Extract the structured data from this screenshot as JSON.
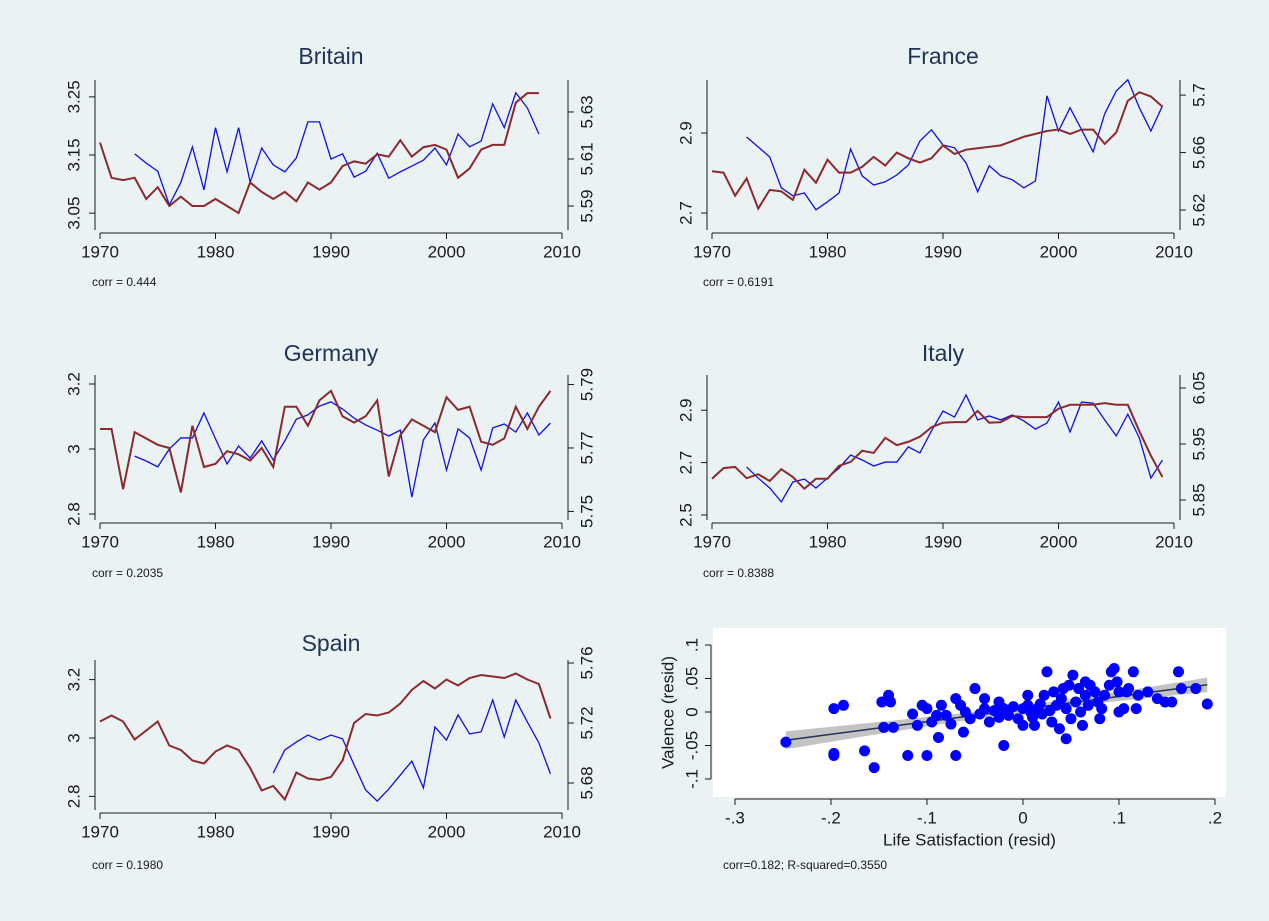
{
  "chart_data": [
    {
      "type": "line",
      "title": "Britain",
      "annotation": "corr = 0.444",
      "x": [
        1970,
        1971,
        1972,
        1973,
        1974,
        1975,
        1976,
        1977,
        1978,
        1979,
        1980,
        1981,
        1982,
        1983,
        1984,
        1985,
        1986,
        1987,
        1988,
        1989,
        1990,
        1991,
        1992,
        1993,
        1994,
        1995,
        1996,
        1997,
        1998,
        1999,
        2000,
        2001,
        2002,
        2003,
        2004,
        2005,
        2006,
        2007,
        2008
      ],
      "xlim": [
        1970,
        2010
      ],
      "xticks": [
        1970,
        1980,
        1990,
        2000,
        2010
      ],
      "ylim": [
        3.021,
        3.279
      ],
      "yticks": [
        3.05,
        3.15,
        3.25
      ],
      "y2lim": [
        5.5798,
        5.6436
      ],
      "y2ticks": [
        5.59,
        5.61,
        5.63
      ],
      "series": [
        {
          "color": "#1010e0",
          "axis": "y",
          "values": [
            null,
            null,
            null,
            3.152,
            3.136,
            3.122,
            3.064,
            3.103,
            3.164,
            3.09,
            3.197,
            3.121,
            3.197,
            3.103,
            3.162,
            3.133,
            3.121,
            3.145,
            3.207,
            3.207,
            3.143,
            3.152,
            3.112,
            3.122,
            3.153,
            3.11,
            3.121,
            3.131,
            3.141,
            3.162,
            3.133,
            3.186,
            3.164,
            3.174,
            3.238,
            3.197,
            3.257,
            3.231,
            3.186
          ]
        },
        {
          "color": "#8b2a2e",
          "axis": "y2",
          "values": [
            5.617,
            5.602,
            5.601,
            5.602,
            5.593,
            5.598,
            5.59,
            5.594,
            5.59,
            5.59,
            5.593,
            5.59,
            5.587,
            5.6,
            5.596,
            5.593,
            5.596,
            5.592,
            5.6,
            5.597,
            5.6,
            5.607,
            5.609,
            5.608,
            5.612,
            5.611,
            5.618,
            5.611,
            5.615,
            5.616,
            5.614,
            5.602,
            5.606,
            5.614,
            5.616,
            5.616,
            5.634,
            5.638,
            5.638
          ]
        }
      ]
    },
    {
      "type": "line",
      "title": "France",
      "annotation": "corr = 0.6191",
      "x": [
        1970,
        1971,
        1972,
        1973,
        1974,
        1975,
        1976,
        1977,
        1978,
        1979,
        1980,
        1981,
        1982,
        1983,
        1984,
        1985,
        1986,
        1987,
        1988,
        1989,
        1990,
        1991,
        1992,
        1993,
        1994,
        1995,
        1996,
        1997,
        1998,
        1999,
        2000,
        2001,
        2002,
        2003,
        2004,
        2005,
        2006,
        2007,
        2008,
        2009
      ],
      "xlim": [
        1970,
        2010
      ],
      "xticks": [
        1970,
        1980,
        1990,
        2000,
        2010
      ],
      "ylim": [
        2.6575,
        3.0325
      ],
      "yticks": [
        2.7,
        2.9
      ],
      "y2lim": [
        5.6061,
        5.7105
      ],
      "y2ticks": [
        5.62,
        5.66,
        5.7
      ],
      "series": [
        {
          "color": "#1010e0",
          "axis": "y",
          "values": [
            null,
            null,
            null,
            2.89,
            2.865,
            2.84,
            2.763,
            2.743,
            2.75,
            2.708,
            2.728,
            2.75,
            2.86,
            2.793,
            2.77,
            2.778,
            2.795,
            2.82,
            2.88,
            2.908,
            2.87,
            2.863,
            2.825,
            2.753,
            2.818,
            2.793,
            2.783,
            2.763,
            2.78,
            2.993,
            2.905,
            2.963,
            2.908,
            2.853,
            2.948,
            3.005,
            3.033,
            2.963,
            2.905,
            2.968
          ]
        },
        {
          "color": "#8b2a2e",
          "axis": "y2",
          "values": [
            5.647,
            5.646,
            5.63,
            5.642,
            5.621,
            5.634,
            5.633,
            5.627,
            5.648,
            5.639,
            5.655,
            5.646,
            5.646,
            5.65,
            5.657,
            5.651,
            5.66,
            5.656,
            5.653,
            5.656,
            5.665,
            5.659,
            5.662,
            5.663,
            5.664,
            5.665,
            5.668,
            5.671,
            5.673,
            5.675,
            5.676,
            5.673,
            5.676,
            5.676,
            5.666,
            5.674,
            5.696,
            5.702,
            5.699,
            5.692
          ]
        }
      ]
    },
    {
      "type": "line",
      "title": "Germany",
      "annotation": "corr = 0.2035",
      "x": [
        1970,
        1971,
        1972,
        1973,
        1974,
        1975,
        1976,
        1977,
        1978,
        1979,
        1980,
        1981,
        1982,
        1983,
        1984,
        1985,
        1986,
        1987,
        1988,
        1989,
        1990,
        1991,
        1992,
        1993,
        1994,
        1995,
        1996,
        1997,
        1998,
        1999,
        2000,
        2001,
        2002,
        2003,
        2004,
        2005,
        2006,
        2007,
        2008,
        2009
      ],
      "xlim": [
        1970,
        2010
      ],
      "xticks": [
        1970,
        1980,
        1990,
        2000,
        2010
      ],
      "ylim": [
        2.7815,
        3.2277
      ],
      "yticks": [
        2.8,
        3,
        3.2
      ],
      "y2lim": [
        5.7473,
        5.793
      ],
      "y2ticks": [
        5.75,
        5.77,
        5.79
      ],
      "series": [
        {
          "color": "#1010e0",
          "axis": "y",
          "values": [
            null,
            null,
            null,
            2.978,
            2.963,
            2.945,
            3.0,
            3.034,
            3.034,
            3.111,
            3.031,
            2.954,
            3.009,
            2.972,
            3.025,
            2.966,
            3.025,
            3.092,
            3.105,
            3.132,
            3.145,
            3.123,
            3.095,
            3.074,
            3.058,
            3.04,
            3.058,
            2.852,
            3.028,
            3.08,
            2.935,
            3.062,
            3.034,
            2.935,
            3.065,
            3.077,
            3.052,
            3.111,
            3.043,
            3.08
          ]
        },
        {
          "color": "#8b2a2e",
          "axis": "y2",
          "values": [
            5.776,
            5.776,
            5.757,
            5.775,
            5.773,
            5.771,
            5.77,
            5.756,
            5.777,
            5.764,
            5.765,
            5.769,
            5.768,
            5.766,
            5.77,
            5.764,
            5.783,
            5.783,
            5.777,
            5.785,
            5.788,
            5.78,
            5.778,
            5.78,
            5.785,
            5.761,
            5.774,
            5.779,
            5.777,
            5.775,
            5.786,
            5.782,
            5.783,
            5.772,
            5.771,
            5.773,
            5.783,
            5.776,
            5.783,
            5.788
          ]
        }
      ]
    },
    {
      "type": "line",
      "title": "Italy",
      "annotation": "corr = 0.8388",
      "x": [
        1970,
        1971,
        1972,
        1973,
        1974,
        1975,
        1976,
        1977,
        1978,
        1979,
        1980,
        1981,
        1982,
        1983,
        1984,
        1985,
        1986,
        1987,
        1988,
        1989,
        1990,
        1991,
        1992,
        1993,
        1994,
        1995,
        1996,
        1997,
        1998,
        1999,
        2000,
        2001,
        2002,
        2003,
        2004,
        2005,
        2006,
        2007,
        2008,
        2009
      ],
      "xlim": [
        1970,
        2010
      ],
      "xticks": [
        1970,
        1980,
        1990,
        2000,
        2010
      ],
      "ylim": [
        2.4809,
        3.0344
      ],
      "yticks": [
        2.5,
        2.7,
        2.9
      ],
      "y2lim": [
        5.8143,
        6.0732
      ],
      "y2ticks": [
        5.85,
        5.95,
        6.05
      ],
      "series": [
        {
          "color": "#1010e0",
          "axis": "y",
          "values": [
            null,
            null,
            null,
            2.683,
            2.641,
            2.603,
            2.55,
            2.626,
            2.637,
            2.603,
            2.641,
            2.679,
            2.729,
            2.71,
            2.687,
            2.702,
            2.702,
            2.76,
            2.737,
            2.821,
            2.897,
            2.874,
            2.958,
            2.863,
            2.878,
            2.863,
            2.882,
            2.859,
            2.828,
            2.851,
            2.931,
            2.817,
            2.931,
            2.927,
            2.863,
            2.802,
            2.885,
            2.794,
            2.641,
            2.71
          ]
        },
        {
          "color": "#8b2a2e",
          "axis": "y2",
          "values": [
            5.888,
            5.907,
            5.909,
            5.889,
            5.896,
            5.884,
            5.905,
            5.891,
            5.87,
            5.888,
            5.888,
            5.911,
            5.918,
            5.938,
            5.934,
            5.961,
            5.948,
            5.954,
            5.963,
            5.98,
            5.988,
            5.989,
            5.989,
            6.009,
            5.988,
            5.989,
            6.0,
            5.998,
            5.998,
            5.998,
            6.013,
            6.02,
            6.02,
            6.02,
            6.023,
            6.02,
            6.02,
            5.973,
            5.929,
            5.891
          ]
        }
      ]
    },
    {
      "type": "line",
      "title": "Spain",
      "annotation": "corr = 0.1980",
      "x": [
        1970,
        1971,
        1972,
        1973,
        1974,
        1975,
        1976,
        1977,
        1978,
        1979,
        1980,
        1981,
        1982,
        1983,
        1984,
        1985,
        1986,
        1987,
        1988,
        1989,
        1990,
        1991,
        1992,
        1993,
        1994,
        1995,
        1996,
        1997,
        1998,
        1999,
        2000,
        2001,
        2002,
        2003,
        2004,
        2005,
        2006,
        2007,
        2008,
        2009
      ],
      "xlim": [
        1970,
        2010
      ],
      "xticks": [
        1970,
        1980,
        1990,
        2000,
        2010
      ],
      "ylim": [
        2.7534,
        3.2671
      ],
      "yticks": [
        2.8,
        3,
        3.2
      ],
      "y2lim": [
        5.662,
        5.762
      ],
      "y2ticks": [
        5.68,
        5.72,
        5.76
      ],
      "series": [
        {
          "color": "#1010e0",
          "axis": "y",
          "values": [
            null,
            null,
            null,
            null,
            null,
            null,
            null,
            null,
            null,
            null,
            null,
            null,
            null,
            null,
            null,
            2.88,
            2.959,
            2.986,
            3.01,
            2.993,
            3.01,
            2.997,
            2.908,
            2.822,
            2.784,
            2.825,
            2.873,
            2.921,
            2.829,
            3.038,
            2.993,
            3.079,
            3.014,
            3.021,
            3.13,
            3.003,
            3.13,
            3.055,
            2.983,
            2.877
          ]
        },
        {
          "color": "#8b2a2e",
          "axis": "y2",
          "values": [
            5.721,
            5.725,
            5.721,
            5.709,
            5.715,
            5.721,
            5.705,
            5.702,
            5.695,
            5.693,
            5.701,
            5.705,
            5.702,
            5.69,
            5.675,
            5.678,
            5.669,
            5.687,
            5.683,
            5.682,
            5.684,
            5.695,
            5.72,
            5.726,
            5.725,
            5.727,
            5.733,
            5.742,
            5.748,
            5.743,
            5.749,
            5.745,
            5.75,
            5.752,
            5.751,
            5.75,
            5.753,
            5.749,
            5.746,
            5.723
          ]
        }
      ]
    },
    {
      "type": "scatter",
      "annotation": "corr=0.182; R-squared=0.3550",
      "xlabel": "Life Satisfaction (resid)",
      "ylabel": "Valence (resid)",
      "color": "#0000ff",
      "xlim": [
        -0.3229,
        0.2115
      ],
      "xticks": [
        {
          "value": -0.3,
          "label": "-.3"
        },
        {
          "value": -0.2,
          "label": "-.2"
        },
        {
          "value": -0.1,
          "label": "-.1"
        },
        0,
        {
          "value": 0.1,
          "label": ".1"
        },
        {
          "value": 0.2,
          "label": ".2"
        }
      ],
      "ylim": [
        -0.1269,
        0.1254
      ],
      "yticks": [
        {
          "value": -0.1,
          "label": "-.1"
        },
        {
          "value": -0.05,
          "label": "-.05"
        },
        0,
        {
          "value": 0.05,
          "label": ".05"
        },
        {
          "value": 0.1,
          "label": ".1"
        }
      ],
      "x": [
        -0.247,
        -0.197,
        -0.187,
        -0.197,
        -0.197,
        -0.165,
        -0.155,
        -0.147,
        -0.14,
        -0.138,
        -0.145,
        -0.135,
        -0.12,
        -0.115,
        -0.105,
        -0.1,
        -0.1,
        -0.095,
        -0.09,
        -0.088,
        -0.085,
        -0.08,
        -0.075,
        -0.07,
        -0.07,
        -0.065,
        -0.06,
        -0.055,
        -0.05,
        -0.045,
        -0.04,
        -0.035,
        -0.03,
        -0.025,
        -0.02,
        -0.02,
        -0.015,
        -0.01,
        -0.005,
        0.0,
        0.0,
        0.005,
        0.008,
        0.01,
        0.012,
        0.015,
        0.018,
        0.02,
        0.022,
        0.025,
        0.028,
        0.03,
        0.032,
        0.035,
        0.038,
        0.04,
        0.042,
        0.045,
        0.048,
        0.05,
        0.052,
        0.055,
        0.058,
        0.06,
        0.062,
        0.065,
        0.068,
        0.07,
        0.075,
        0.078,
        0.08,
        0.082,
        0.085,
        0.09,
        0.092,
        0.095,
        0.098,
        0.1,
        0.105,
        0.108,
        0.11,
        0.115,
        0.118,
        0.12,
        0.13,
        0.14,
        0.148,
        0.155,
        0.162,
        0.165,
        0.18,
        0.192,
        -0.11,
        -0.062,
        -0.04,
        0.045,
        0.005,
        -0.025,
        0.065,
        0.1
      ],
      "values": [
        -0.045,
        0.005,
        0.01,
        -0.065,
        -0.062,
        -0.058,
        -0.083,
        0.015,
        0.025,
        0.015,
        -0.023,
        -0.023,
        -0.065,
        -0.003,
        0.01,
        -0.065,
        0.005,
        -0.015,
        -0.005,
        -0.038,
        0.01,
        -0.005,
        -0.018,
        0.02,
        -0.065,
        0.01,
        0.0,
        -0.01,
        0.035,
        -0.003,
        0.005,
        -0.015,
        0.002,
        -0.008,
        0.005,
        -0.05,
        -0.005,
        0.008,
        -0.01,
        0.005,
        -0.02,
        0.01,
        0.0,
        -0.008,
        -0.02,
        0.005,
        0.012,
        -0.003,
        0.025,
        0.06,
        0.002,
        -0.015,
        0.03,
        0.01,
        -0.025,
        0.02,
        0.035,
        0.005,
        0.04,
        -0.01,
        0.055,
        0.015,
        0.035,
        0.0,
        -0.02,
        0.025,
        0.01,
        0.04,
        0.03,
        0.015,
        -0.01,
        0.005,
        0.025,
        0.04,
        0.06,
        0.065,
        0.045,
        0.03,
        0.005,
        0.03,
        0.035,
        0.06,
        0.005,
        0.025,
        0.03,
        0.02,
        0.015,
        0.015,
        0.06,
        0.035,
        0.035,
        0.012,
        -0.02,
        -0.03,
        0.02,
        -0.04,
        0.025,
        0.015,
        0.045,
        0.0
      ]
    }
  ]
}
